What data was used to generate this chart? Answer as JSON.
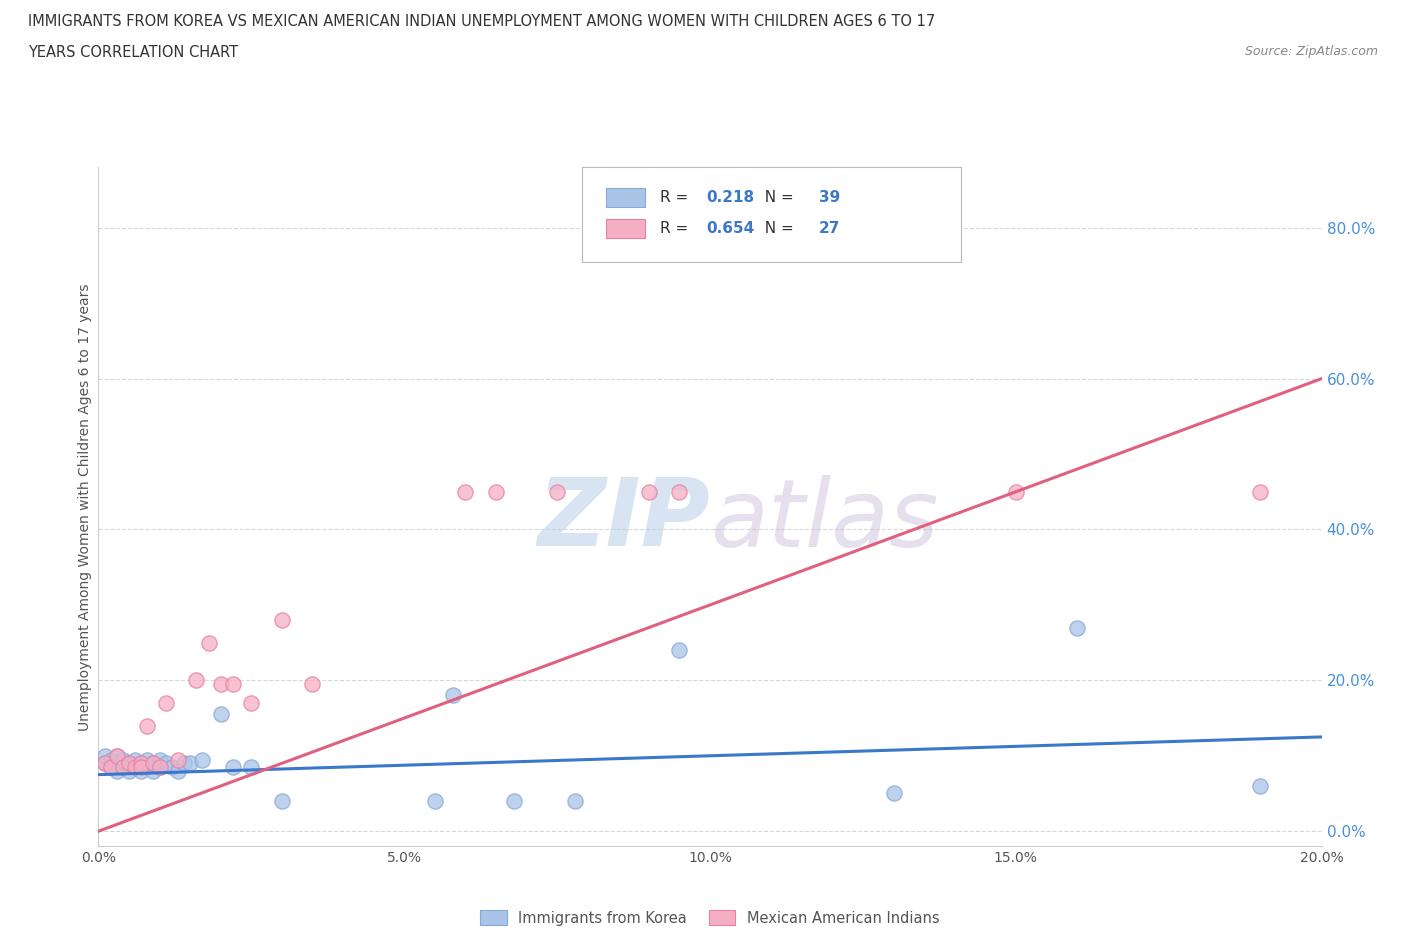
{
  "title_line1": "IMMIGRANTS FROM KOREA VS MEXICAN AMERICAN INDIAN UNEMPLOYMENT AMONG WOMEN WITH CHILDREN AGES 6 TO 17",
  "title_line2": "YEARS CORRELATION CHART",
  "source": "Source: ZipAtlas.com",
  "ylabel": "Unemployment Among Women with Children Ages 6 to 17 years",
  "xlim": [
    0.0,
    0.2
  ],
  "ylim": [
    -0.02,
    0.88
  ],
  "xticks": [
    0.0,
    0.05,
    0.1,
    0.15,
    0.2
  ],
  "xticklabels": [
    "0.0%",
    "5.0%",
    "10.0%",
    "15.0%",
    "20.0%"
  ],
  "yticks": [
    0.0,
    0.2,
    0.4,
    0.6,
    0.8
  ],
  "yticklabels": [
    "0.0%",
    "20.0%",
    "40.0%",
    "60.0%",
    "80.0%"
  ],
  "grid_color": "#d8d8d8",
  "watermark_zip": "ZIP",
  "watermark_atlas": "atlas",
  "korea_color": "#aac4e8",
  "mexico_color": "#f5afc5",
  "korea_edge_color": "#88a8d8",
  "mexico_edge_color": "#e880a0",
  "korea_line_color": "#3a78c9",
  "mexico_line_color": "#e06080",
  "korea_R": "0.218",
  "korea_N": "39",
  "mexico_R": "0.654",
  "mexico_N": "27",
  "legend_label_korea": "Immigrants from Korea",
  "legend_label_mexico": "Mexican American Indians",
  "korea_scatter_x": [
    0.001,
    0.001,
    0.002,
    0.002,
    0.003,
    0.003,
    0.003,
    0.004,
    0.004,
    0.005,
    0.005,
    0.006,
    0.006,
    0.007,
    0.007,
    0.008,
    0.008,
    0.009,
    0.009,
    0.01,
    0.01,
    0.011,
    0.012,
    0.013,
    0.014,
    0.015,
    0.017,
    0.02,
    0.022,
    0.025,
    0.03,
    0.055,
    0.068,
    0.078,
    0.058,
    0.095,
    0.13,
    0.16,
    0.19
  ],
  "korea_scatter_y": [
    0.09,
    0.1,
    0.085,
    0.095,
    0.08,
    0.09,
    0.1,
    0.085,
    0.095,
    0.08,
    0.09,
    0.085,
    0.095,
    0.08,
    0.09,
    0.085,
    0.095,
    0.08,
    0.09,
    0.085,
    0.095,
    0.09,
    0.085,
    0.08,
    0.09,
    0.09,
    0.095,
    0.155,
    0.085,
    0.085,
    0.04,
    0.04,
    0.04,
    0.04,
    0.18,
    0.24,
    0.05,
    0.27,
    0.06
  ],
  "mexico_scatter_x": [
    0.001,
    0.002,
    0.003,
    0.004,
    0.005,
    0.006,
    0.007,
    0.007,
    0.008,
    0.009,
    0.01,
    0.011,
    0.013,
    0.016,
    0.018,
    0.02,
    0.022,
    0.025,
    0.03,
    0.035,
    0.06,
    0.065,
    0.075,
    0.09,
    0.095,
    0.15,
    0.19
  ],
  "mexico_scatter_y": [
    0.09,
    0.085,
    0.1,
    0.085,
    0.09,
    0.085,
    0.09,
    0.085,
    0.14,
    0.09,
    0.085,
    0.17,
    0.095,
    0.2,
    0.25,
    0.195,
    0.195,
    0.17,
    0.28,
    0.195,
    0.45,
    0.45,
    0.45,
    0.45,
    0.45,
    0.45,
    0.45
  ],
  "korea_trend_x": [
    0.0,
    0.2
  ],
  "korea_trend_y": [
    0.075,
    0.125
  ],
  "mexico_trend_x": [
    0.0,
    0.2
  ],
  "mexico_trend_y": [
    0.0,
    0.6
  ]
}
